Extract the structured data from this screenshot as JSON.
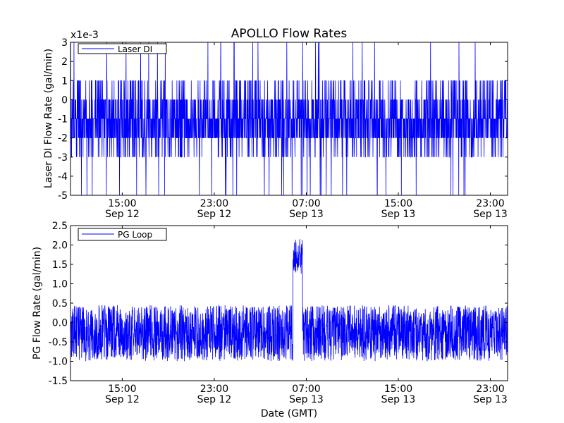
{
  "figure": {
    "title": "APOLLO Flow Rates",
    "xlabel": "Date (GMT)"
  },
  "chart_data": [
    {
      "type": "line",
      "ylabel": "Laser DI Flow Rate (gal/min)",
      "y_multiplier": "x1e-3",
      "legend_position": "top-left",
      "xlim": [
        "Sep 12 10:30",
        "Sep 14 00:30"
      ],
      "ylim": [
        -5,
        3
      ],
      "y_ticks": [
        "3",
        "2",
        "1",
        "0",
        "-1",
        "-2",
        "-3",
        "-4",
        "-5"
      ],
      "x_ticks": [
        {
          "time": "15:00",
          "date": "Sep 12"
        },
        {
          "time": "23:00",
          "date": "Sep 12"
        },
        {
          "time": "07:00",
          "date": "Sep 13"
        },
        {
          "time": "15:00",
          "date": "Sep 13"
        },
        {
          "time": "23:00",
          "date": "Sep 13"
        }
      ],
      "series": [
        {
          "name": "Laser DI",
          "color": "#0000ff",
          "noisy_signal": true,
          "typical_range": [
            -3,
            1
          ],
          "spike_range": [
            -5,
            3
          ]
        }
      ]
    },
    {
      "type": "line",
      "ylabel": "PG Flow Rate (gal/min)",
      "legend_position": "top-left",
      "xlim": [
        "Sep 12 10:30",
        "Sep 14 00:30"
      ],
      "ylim": [
        -1.5,
        2.5
      ],
      "y_ticks": [
        "2.5",
        "2.0",
        "1.5",
        "1.0",
        "0.5",
        "0.0",
        "-0.5",
        "-1.0",
        "-1.5"
      ],
      "x_ticks": [
        {
          "time": "15:00",
          "date": "Sep 12"
        },
        {
          "time": "23:00",
          "date": "Sep 12"
        },
        {
          "time": "07:00",
          "date": "Sep 13"
        },
        {
          "time": "15:00",
          "date": "Sep 13"
        },
        {
          "time": "23:00",
          "date": "Sep 13"
        }
      ],
      "series": [
        {
          "name": "PG Loop",
          "color": "#0000ff",
          "noisy_signal": true,
          "typical_range": [
            -1.0,
            0.45
          ],
          "peak_value": 2.15,
          "peak_interval": [
            "Sep 13 05:50",
            "Sep 13 06:40"
          ]
        }
      ]
    }
  ]
}
